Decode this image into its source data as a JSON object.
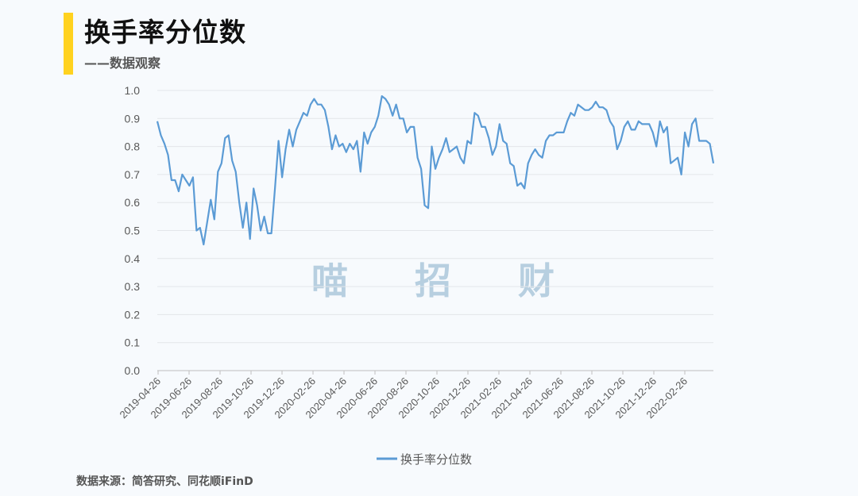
{
  "header": {
    "title": "换手率分位数",
    "subtitle": "——数据观察"
  },
  "watermark": [
    "喵",
    "招",
    "财"
  ],
  "footer": {
    "source": "数据来源：简答研究、同花顺iFinD"
  },
  "colors": {
    "accent": "#ffd21f",
    "line": "#5b9bd5",
    "watermark": "#b7cfe0"
  },
  "chart_data": {
    "type": "line",
    "title": "",
    "xlabel": "",
    "ylabel": "",
    "ylim": [
      0,
      1.0
    ],
    "yticks": [
      "0.0",
      "0.1",
      "0.2",
      "0.3",
      "0.4",
      "0.5",
      "0.6",
      "0.7",
      "0.8",
      "0.9",
      "1.0"
    ],
    "xticks": [
      "2019-04-26",
      "2019-06-26",
      "2019-08-26",
      "2019-10-26",
      "2019-12-26",
      "2020-02-26",
      "2020-04-26",
      "2020-06-26",
      "2020-08-26",
      "2020-10-26",
      "2020-12-26",
      "2021-02-26",
      "2021-04-26",
      "2021-06-26",
      "2021-08-26",
      "2021-10-26",
      "2021-12-26",
      "2022-02-26"
    ],
    "grid": true,
    "legend_position": "bottom",
    "series": [
      {
        "name": "换手率分位数",
        "values": [
          0.89,
          0.84,
          0.81,
          0.77,
          0.68,
          0.68,
          0.64,
          0.7,
          0.68,
          0.66,
          0.69,
          0.5,
          0.51,
          0.45,
          0.53,
          0.61,
          0.54,
          0.71,
          0.74,
          0.83,
          0.84,
          0.75,
          0.71,
          0.6,
          0.51,
          0.6,
          0.47,
          0.65,
          0.59,
          0.5,
          0.55,
          0.49,
          0.49,
          0.65,
          0.82,
          0.69,
          0.79,
          0.86,
          0.8,
          0.86,
          0.89,
          0.92,
          0.91,
          0.95,
          0.97,
          0.95,
          0.95,
          0.93,
          0.87,
          0.79,
          0.84,
          0.8,
          0.81,
          0.78,
          0.81,
          0.79,
          0.82,
          0.71,
          0.85,
          0.81,
          0.85,
          0.87,
          0.91,
          0.98,
          0.97,
          0.95,
          0.91,
          0.95,
          0.9,
          0.9,
          0.85,
          0.87,
          0.87,
          0.76,
          0.72,
          0.59,
          0.58,
          0.8,
          0.72,
          0.76,
          0.79,
          0.83,
          0.78,
          0.79,
          0.8,
          0.76,
          0.74,
          0.82,
          0.81,
          0.92,
          0.91,
          0.87,
          0.87,
          0.83,
          0.77,
          0.8,
          0.88,
          0.82,
          0.81,
          0.74,
          0.73,
          0.66,
          0.67,
          0.65,
          0.74,
          0.77,
          0.79,
          0.77,
          0.76,
          0.82,
          0.84,
          0.84,
          0.85,
          0.85,
          0.85,
          0.89,
          0.92,
          0.91,
          0.95,
          0.94,
          0.93,
          0.93,
          0.94,
          0.96,
          0.94,
          0.94,
          0.93,
          0.89,
          0.87,
          0.79,
          0.82,
          0.87,
          0.89,
          0.86,
          0.86,
          0.89,
          0.88,
          0.88,
          0.88,
          0.85,
          0.8,
          0.89,
          0.85,
          0.87,
          0.74,
          0.75,
          0.76,
          0.7,
          0.85,
          0.8,
          0.88,
          0.9,
          0.82,
          0.82,
          0.82,
          0.81,
          0.74
        ]
      }
    ]
  }
}
